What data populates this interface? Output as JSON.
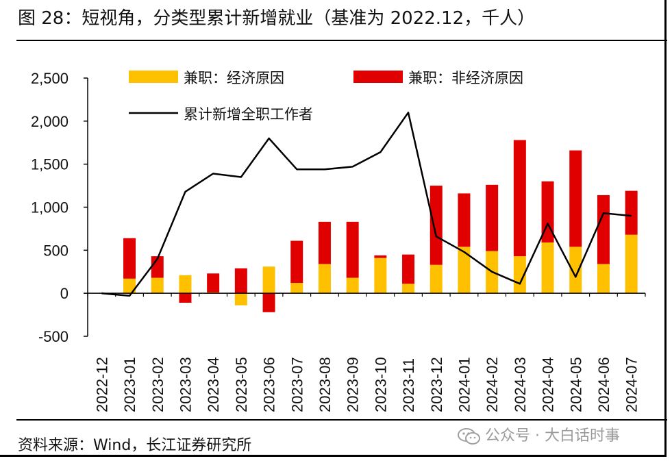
{
  "title": "图 28：短视角，分类型累计新增就业（基准为 2022.12，千人）",
  "source": "资料来源：Wind，长江证券研究所",
  "watermark": "公众号 · 大白话时事",
  "colors": {
    "part_time_economic": "#FFC000",
    "part_time_non_economic": "#E00000",
    "full_time_line": "#000000",
    "axis": "#000000"
  },
  "chart_data": {
    "type": "bar",
    "categories": [
      "2022-12",
      "2023-01",
      "2023-02",
      "2023-03",
      "2023-04",
      "2023-05",
      "2023-06",
      "2023-07",
      "2023-08",
      "2023-09",
      "2023-10",
      "2023-11",
      "2023-12",
      "2024-01",
      "2024-02",
      "2024-03",
      "2024-04",
      "2024-05",
      "2024-06",
      "2024-07"
    ],
    "series": [
      {
        "name": "兼职：经济原因",
        "type": "stacked-bar",
        "values": [
          0,
          170,
          180,
          210,
          10,
          -140,
          310,
          120,
          340,
          180,
          410,
          110,
          330,
          540,
          490,
          430,
          590,
          540,
          340,
          680
        ]
      },
      {
        "name": "兼职：非经济原因",
        "type": "stacked-bar",
        "values": [
          0,
          470,
          250,
          -110,
          220,
          290,
          -220,
          490,
          490,
          650,
          30,
          340,
          920,
          620,
          770,
          1350,
          710,
          1120,
          800,
          510
        ]
      },
      {
        "name": "累计新增全职工作者",
        "type": "line",
        "values": [
          0,
          -30,
          400,
          1180,
          1390,
          1350,
          1800,
          1440,
          1440,
          1470,
          1640,
          2100,
          660,
          480,
          250,
          110,
          810,
          190,
          930,
          900
        ]
      }
    ],
    "yticks": [
      "2,500",
      "2,000",
      "1,500",
      "1,000",
      "500",
      "0",
      "-500"
    ],
    "ytick_values": [
      2500,
      2000,
      1500,
      1000,
      500,
      0,
      -500
    ],
    "ylim": [
      -500,
      2500
    ],
    "legend_position": "top"
  }
}
